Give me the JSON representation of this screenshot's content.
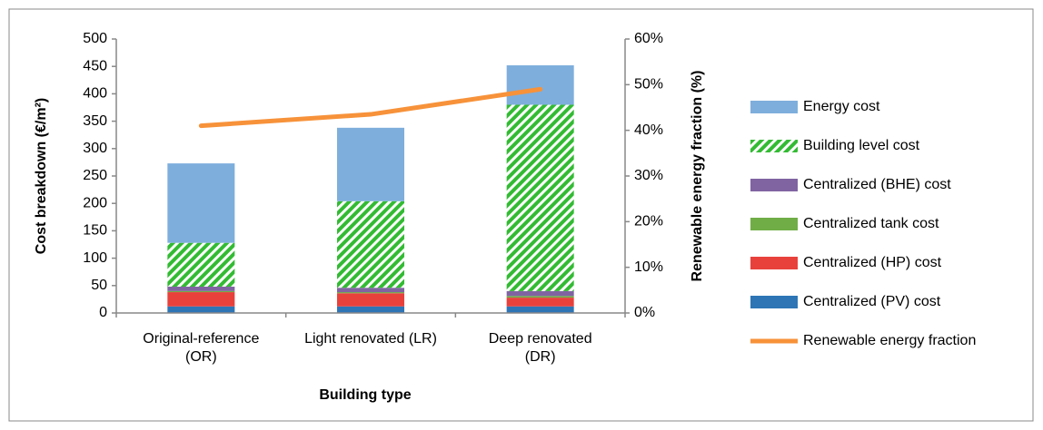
{
  "chart_data": {
    "type": "bar",
    "categories": [
      "Original-reference\n(OR)",
      "Light renovated (LR)",
      "Deep renovated\n(DR)"
    ],
    "x_label": "Building type",
    "y_label": "Cost breakdown (€/m²)",
    "y2_label": "Renewable energy fraction (%)",
    "stacked": true,
    "series": [
      {
        "name": "Centralized (PV) cost",
        "color": "#2e75b6",
        "values": [
          12,
          12,
          12
        ]
      },
      {
        "name": "Centralized (HP) cost",
        "color": "#e8413c",
        "values": [
          26,
          24,
          16
        ]
      },
      {
        "name": "Centralized tank cost",
        "color": "#70ad47",
        "values": [
          2,
          2,
          3
        ]
      },
      {
        "name": "Centralized (BHE) cost",
        "color": "#8064a2",
        "values": [
          8,
          8,
          9
        ]
      },
      {
        "name": "Building level cost",
        "color": "#33bb33",
        "hatch": true,
        "values": [
          80,
          158,
          340
        ]
      },
      {
        "name": "Energy cost",
        "color": "#7eaedc",
        "values": [
          145,
          134,
          72
        ]
      },
      {
        "name": "Renewable energy fraction",
        "color": "#f7923a",
        "type": "line",
        "axis": "y2",
        "values": [
          41,
          43.5,
          49
        ]
      }
    ],
    "ylim": [
      0,
      500
    ],
    "yticks": [
      0,
      50,
      100,
      150,
      200,
      250,
      300,
      350,
      400,
      450,
      500
    ],
    "y2lim": [
      0,
      60
    ],
    "y2ticks": [
      {
        "value": 0,
        "label": "0%"
      },
      {
        "value": 10,
        "label": "10%"
      },
      {
        "value": 20,
        "label": "20%"
      },
      {
        "value": 30,
        "label": "30%"
      },
      {
        "value": 40,
        "label": "40%"
      },
      {
        "value": 50,
        "label": "50%"
      },
      {
        "value": 60,
        "label": "60%"
      }
    ],
    "legend": "right"
  }
}
